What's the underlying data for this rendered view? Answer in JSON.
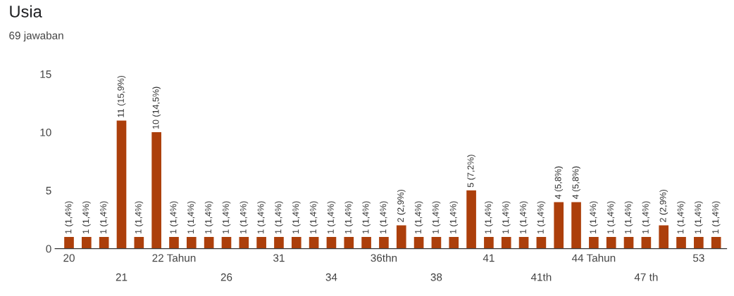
{
  "chart_data": {
    "type": "bar",
    "title": "Usia",
    "subtitle": "69 jawaban",
    "categories": [
      "20",
      null,
      null,
      "21",
      null,
      null,
      "22 Tahun",
      null,
      null,
      "26",
      null,
      null,
      "31",
      null,
      null,
      "34",
      null,
      null,
      "36thn",
      null,
      null,
      "38",
      null,
      null,
      "41",
      null,
      null,
      "41th",
      null,
      null,
      "44 Tahun",
      null,
      null,
      "47 th",
      null,
      null,
      "53",
      null
    ],
    "values": [
      1,
      1,
      1,
      11,
      1,
      10,
      1,
      1,
      1,
      1,
      1,
      1,
      1,
      1,
      1,
      1,
      1,
      1,
      1,
      2,
      1,
      1,
      1,
      5,
      1,
      1,
      1,
      1,
      4,
      4,
      1,
      1,
      1,
      1,
      2,
      1,
      1,
      1
    ],
    "value_labels": [
      "1 (1,4%)",
      "1 (1,4%)",
      "1 (1,4%)",
      "11 (15,9%)",
      "1 (1,4%)",
      "10 (14,5%)",
      "1 (1,4%)",
      "1 (1,4%)",
      "1 (1,4%)",
      "1 (1,4%)",
      "1 (1,4%)",
      "1 (1,4%)",
      "1 (1,4%)",
      "1 (1,4%)",
      "1 (1,4%)",
      "1 (1,4%)",
      "1 (1,4%)",
      "1 (1,4%)",
      "1 (1,4%)",
      "2 (2,9%)",
      "1 (1,4%)",
      "1 (1,4%)",
      "1 (1,4%)",
      "5 (7,2%)",
      "1 (1,4%)",
      "1 (1,4%)",
      "1 (1,4%)",
      "1 (1,4%)",
      "4 (5,8%)",
      "4 (5,8%)",
      "1 (1,4%)",
      "1 (1,4%)",
      "1 (1,4%)",
      "1 (1,4%)",
      "2 (2,9%)",
      "1 (1,4%)",
      "1 (1,4%)",
      "1 (1,4%)"
    ],
    "color": "#ac3f0b",
    "ylim": [
      0,
      15
    ],
    "yticks": [
      0,
      5,
      10,
      15
    ],
    "grid": false
  }
}
